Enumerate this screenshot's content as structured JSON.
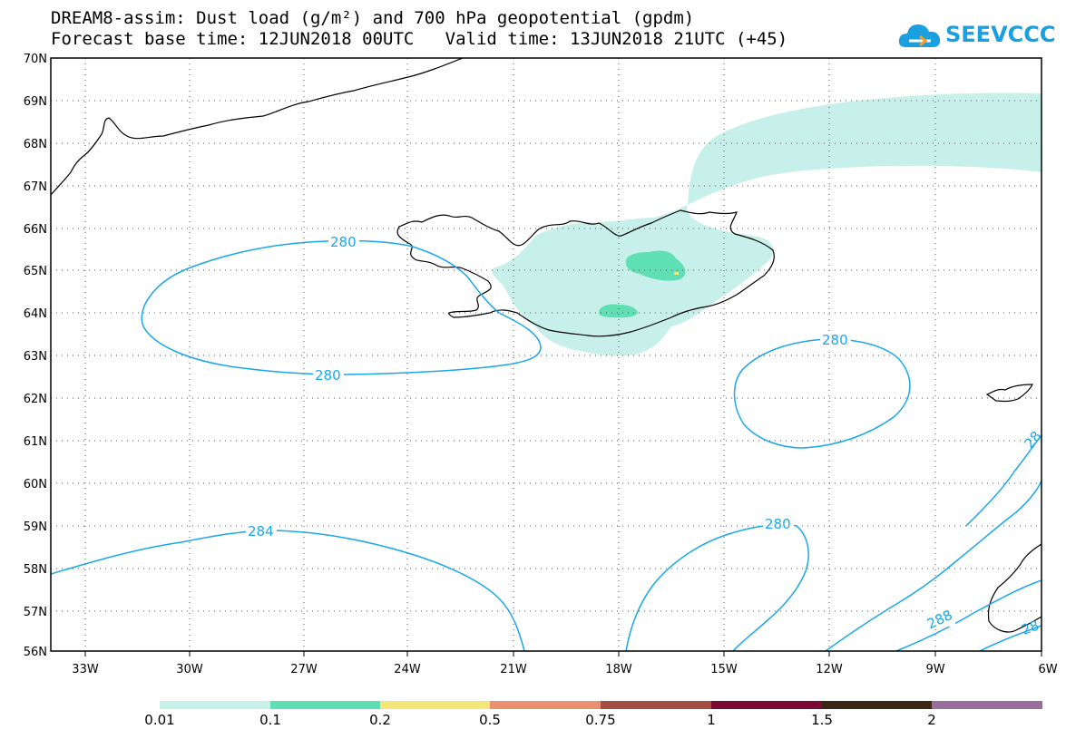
{
  "title_line1": "DREAM8-assim: Dust load (g/m²) and 700 hPa geopotential (gpdm)",
  "title_line2": "Forecast base time: 12JUN2018 00UTC   Valid time: 13JUN2018 21UTC (+45)",
  "logo_text": "SEEVCCC",
  "lat_labels": [
    "70N",
    "69N",
    "68N",
    "67N",
    "66N",
    "65N",
    "64N",
    "63N",
    "62N",
    "61N",
    "60N",
    "59N",
    "58N",
    "57N",
    "56N"
  ],
  "lon_labels": [
    "33W",
    "30W",
    "27W",
    "24W",
    "21W",
    "18W",
    "15W",
    "12W",
    "9W",
    "6W"
  ],
  "contour_labels": [
    "280",
    "280",
    "280",
    "280",
    "284",
    "288",
    "28",
    "28"
  ],
  "colorbar": {
    "colors": [
      "#c8f0ea",
      "#5fe0b4",
      "#f5e67a",
      "#eb9170",
      "#a54e46",
      "#7d0a32",
      "#3c2614",
      "#9a6e9c"
    ],
    "labels": [
      "0.01",
      "0.1",
      "0.2",
      "0.5",
      "0.75",
      "1",
      "1.5",
      "2"
    ]
  }
}
